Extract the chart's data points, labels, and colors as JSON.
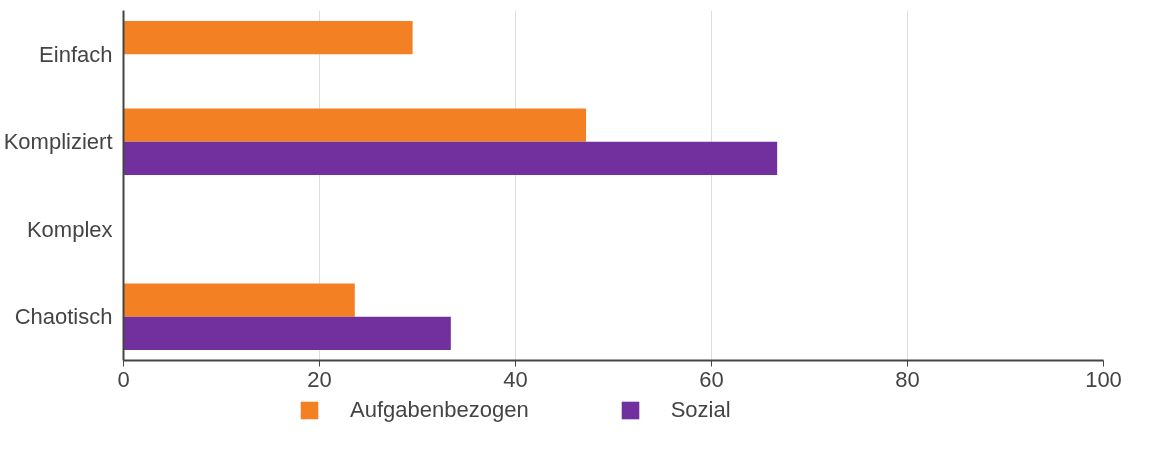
{
  "chart_data": {
    "type": "bar",
    "orientation": "horizontal",
    "categories": [
      "Einfach",
      "Kompliziert",
      "Komplex",
      "Chaotisch"
    ],
    "series": [
      {
        "name": "Aufgabenbezogen",
        "color": "#f38023",
        "values": [
          29.5,
          47.2,
          0,
          23.6
        ]
      },
      {
        "name": "Sozial",
        "color": "#71309e",
        "values": [
          0,
          66.7,
          0,
          33.4
        ]
      }
    ],
    "xlim": [
      0,
      100
    ],
    "xticks": [
      0,
      20,
      40,
      60,
      80,
      100
    ],
    "grid": "x",
    "legend": "bottom"
  }
}
